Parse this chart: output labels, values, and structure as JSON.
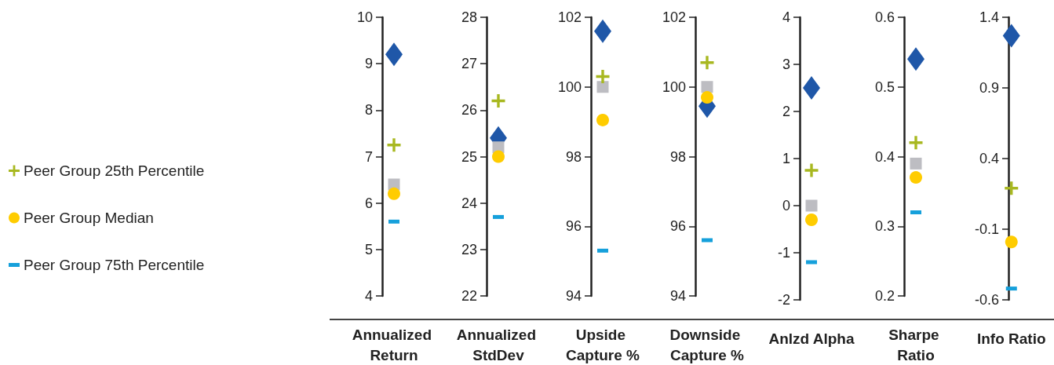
{
  "chart_data": [
    {
      "type": "scatter",
      "categories": [
        "Annualized Return"
      ],
      "ylim": [
        4,
        10
      ],
      "yticks": [
        4,
        5,
        6,
        7,
        8,
        9,
        10
      ],
      "grid": false,
      "legend": "left",
      "series": [
        {
          "color": "#1f57a8",
          "marker": "diamond",
          "values": [
            9.2
          ]
        },
        {
          "color": "#bdbdc2",
          "marker": "square",
          "values": [
            6.4
          ]
        },
        {
          "name": "Peer Group 25th Percentile",
          "color": "#a8b820",
          "marker": "cross",
          "values": [
            7.25
          ]
        },
        {
          "name": "Peer Group Median",
          "color": "#ffcc00",
          "marker": "circle",
          "values": [
            6.2
          ]
        },
        {
          "name": "Peer Group 75th Percentile",
          "color": "#16a0db",
          "values": [
            5.6
          ]
        }
      ]
    },
    {
      "type": "scatter",
      "categories": [
        "Annualized StdDev"
      ],
      "ylim": [
        22,
        28
      ],
      "yticks": [
        22,
        23,
        24,
        25,
        26,
        27,
        28
      ],
      "grid": false,
      "series": [
        {
          "color": "#1f57a8",
          "marker": "diamond",
          "values": [
            25.4
          ]
        },
        {
          "color": "#bdbdc2",
          "marker": "square",
          "values": [
            25.2
          ]
        },
        {
          "color": "#a8b820",
          "marker": "cross",
          "values": [
            26.2
          ]
        },
        {
          "color": "#ffcc00",
          "marker": "circle",
          "values": [
            25.0
          ]
        },
        {
          "color": "#16a0db",
          "values": [
            23.7
          ]
        }
      ]
    },
    {
      "type": "scatter",
      "categories": [
        "Upside Capture %"
      ],
      "ylim": [
        94,
        102
      ],
      "yticks": [
        94,
        96,
        98,
        100,
        102
      ],
      "grid": false,
      "series": [
        {
          "color": "#1f57a8",
          "marker": "diamond",
          "values": [
            101.6
          ]
        },
        {
          "color": "#bdbdc2",
          "marker": "square",
          "values": [
            100.0
          ]
        },
        {
          "color": "#a8b820",
          "marker": "cross",
          "values": [
            100.3
          ]
        },
        {
          "color": "#ffcc00",
          "marker": "circle",
          "values": [
            99.05
          ]
        },
        {
          "color": "#16a0db",
          "values": [
            95.3
          ]
        }
      ]
    },
    {
      "type": "scatter",
      "categories": [
        "Downside Capture %"
      ],
      "ylim": [
        94,
        102
      ],
      "yticks": [
        94,
        96,
        98,
        100,
        102
      ],
      "grid": false,
      "series": [
        {
          "color": "#1f57a8",
          "marker": "diamond",
          "values": [
            99.45
          ]
        },
        {
          "color": "#bdbdc2",
          "marker": "square",
          "values": [
            100.0
          ]
        },
        {
          "color": "#a8b820",
          "marker": "cross",
          "values": [
            100.7
          ]
        },
        {
          "color": "#ffcc00",
          "marker": "circle",
          "values": [
            99.7
          ]
        },
        {
          "color": "#16a0db",
          "values": [
            95.6
          ]
        }
      ]
    },
    {
      "type": "scatter",
      "categories": [
        "Anlzd Alpha"
      ],
      "ylim": [
        -2,
        4
      ],
      "yticks": [
        -2,
        -1,
        0,
        1,
        2,
        3,
        4
      ],
      "grid": false,
      "series": [
        {
          "color": "#1f57a8",
          "marker": "diamond",
          "values": [
            2.5
          ]
        },
        {
          "color": "#bdbdc2",
          "marker": "square",
          "values": [
            0.0
          ]
        },
        {
          "color": "#a8b820",
          "marker": "cross",
          "values": [
            0.75
          ]
        },
        {
          "color": "#ffcc00",
          "marker": "circle",
          "values": [
            -0.3
          ]
        },
        {
          "color": "#16a0db",
          "values": [
            -1.2
          ]
        }
      ]
    },
    {
      "type": "scatter",
      "categories": [
        "Sharpe Ratio"
      ],
      "ylim": [
        0.2,
        0.6
      ],
      "yticks": [
        0.2,
        0.3,
        0.4,
        0.5,
        0.6
      ],
      "grid": false,
      "series": [
        {
          "color": "#1f57a8",
          "marker": "diamond",
          "values": [
            0.54
          ]
        },
        {
          "color": "#bdbdc2",
          "marker": "square",
          "values": [
            0.39
          ]
        },
        {
          "color": "#a8b820",
          "marker": "cross",
          "values": [
            0.42
          ]
        },
        {
          "color": "#ffcc00",
          "marker": "circle",
          "values": [
            0.37
          ]
        },
        {
          "color": "#16a0db",
          "values": [
            0.32
          ]
        }
      ]
    },
    {
      "type": "scatter",
      "categories": [
        "Info Ratio"
      ],
      "ylim": [
        -0.6,
        1.4
      ],
      "yticks": [
        -0.6,
        -0.1,
        0.4,
        0.9,
        1.4
      ],
      "grid": false,
      "series": [
        {
          "color": "#1f57a8",
          "marker": "diamond",
          "values": [
            1.27
          ]
        },
        {
          "color": "#bdbdc2",
          "marker": "square",
          "values": [
            null
          ]
        },
        {
          "color": "#a8b820",
          "marker": "cross",
          "values": [
            0.19
          ]
        },
        {
          "color": "#ffcc00",
          "marker": "circle",
          "values": [
            -0.19
          ]
        },
        {
          "color": "#16a0db",
          "values": [
            -0.52
          ]
        }
      ]
    }
  ]
}
